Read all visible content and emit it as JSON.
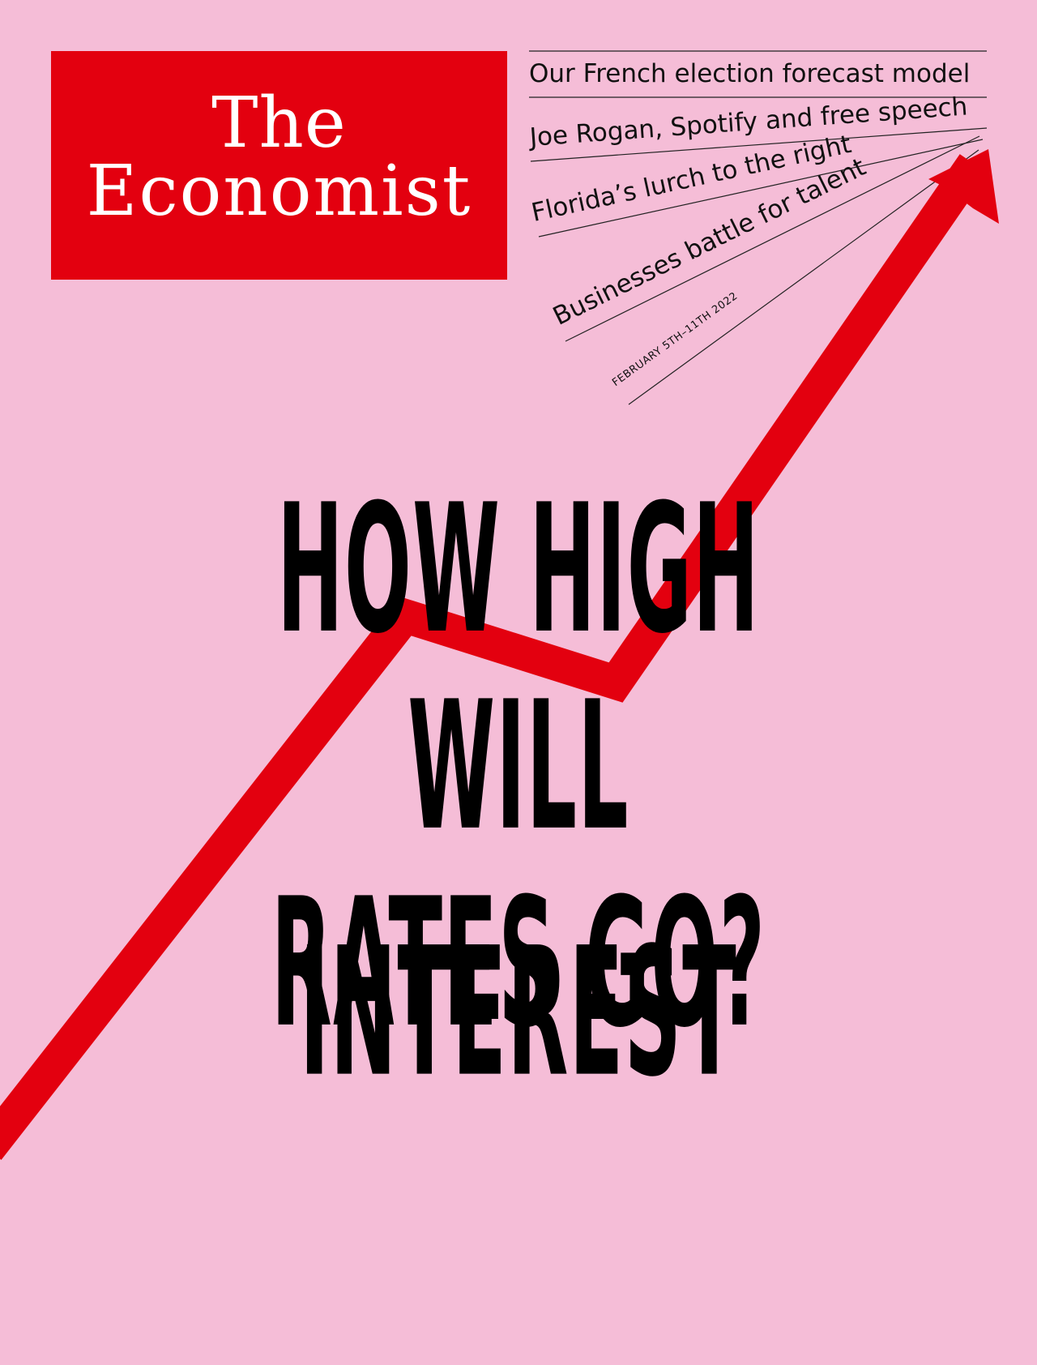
{
  "colors": {
    "background": "#f5bdd7",
    "masthead": "#e3000f",
    "arrow": "#e3000f",
    "text": "#000000"
  },
  "masthead": {
    "line1": "The",
    "line2": "Economist"
  },
  "teasers": [
    "Our French election forecast model",
    "Joe Rogan, Spotify and free speech",
    "Florida’s lurch to the right",
    "Businesses battle for talent"
  ],
  "issue_date": "FEBRUARY 5TH–11TH 2022",
  "headline": {
    "line1": "HOW HIGH",
    "line2": "WILL INTEREST",
    "line3": "RATES GO?"
  },
  "graphic": {
    "type": "rising-arrow-line"
  }
}
